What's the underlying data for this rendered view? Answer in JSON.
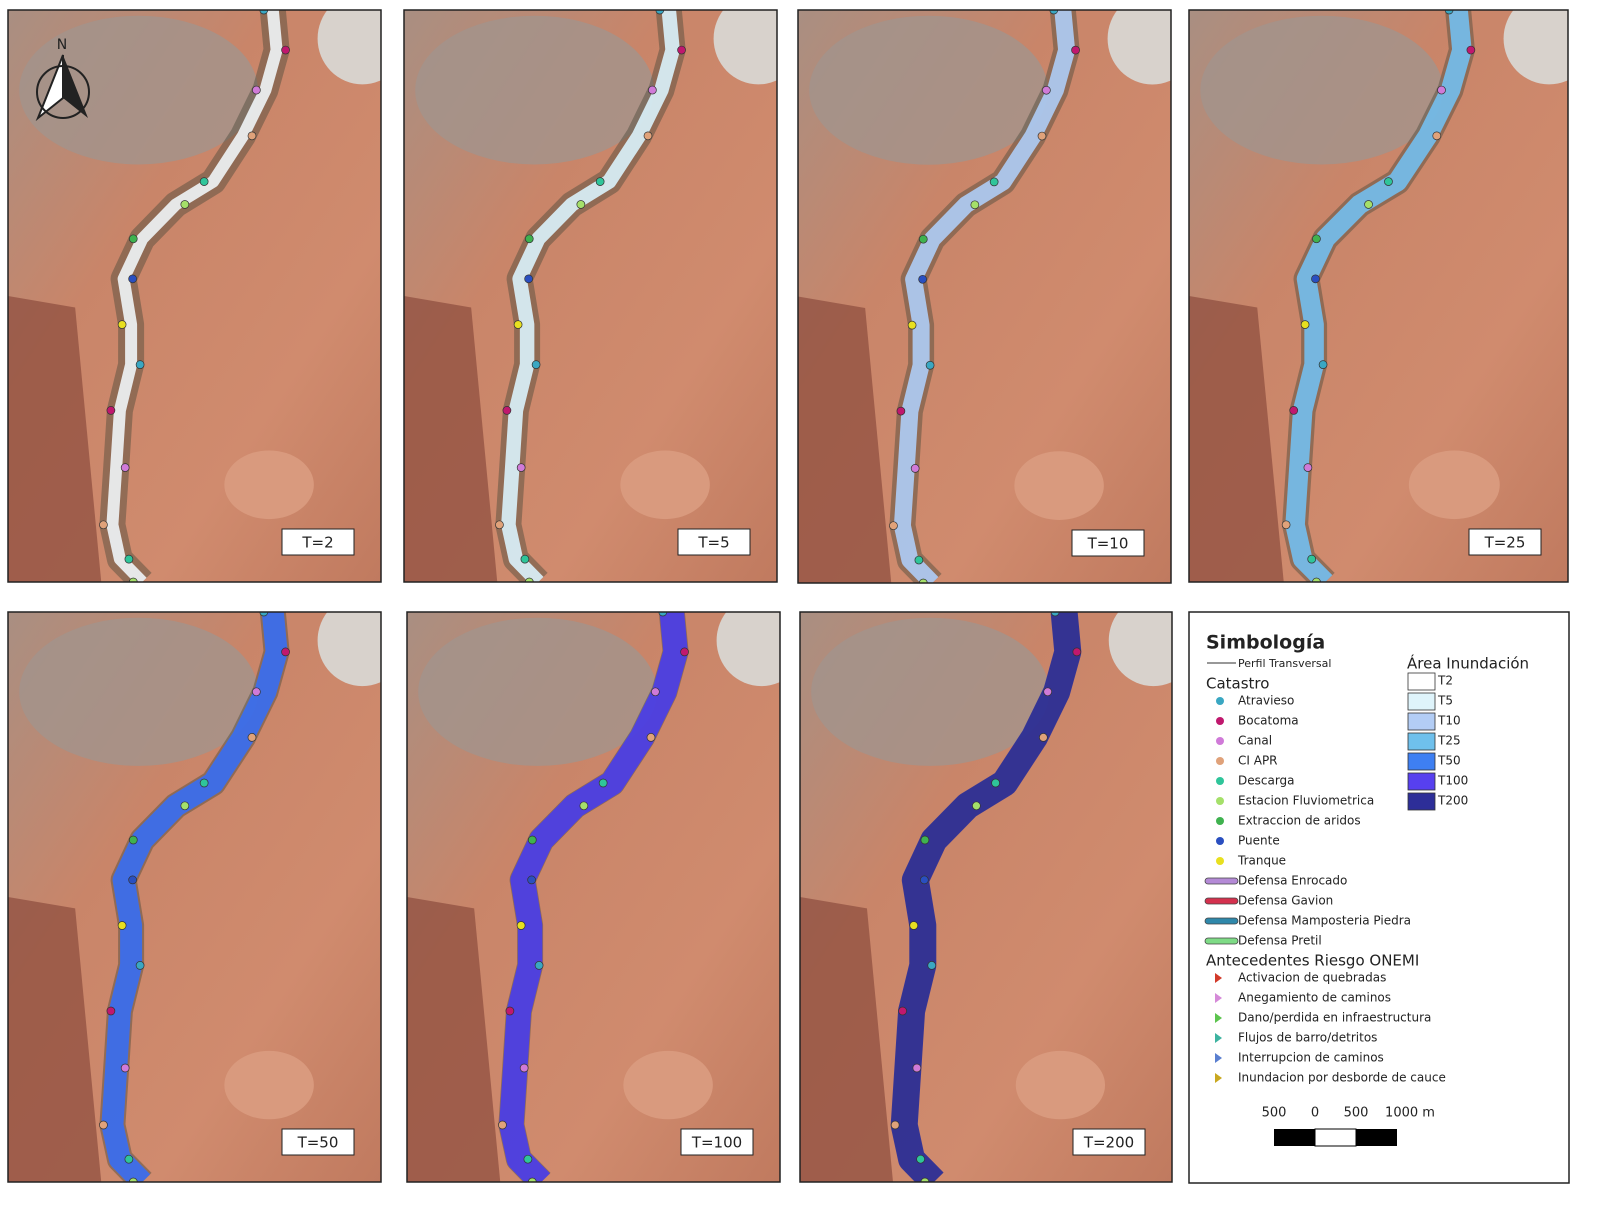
{
  "north_label": "N",
  "panels": [
    {
      "label": "T=2",
      "color": "#eef2f4"
    },
    {
      "label": "T=5",
      "color": "#d9f0f8"
    },
    {
      "label": "T=10",
      "color": "#aecbf3"
    },
    {
      "label": "T=25",
      "color": "#74bdec"
    },
    {
      "label": "T=50",
      "color": "#3a6ef0"
    },
    {
      "label": "T=100",
      "color": "#4b3ee8"
    },
    {
      "label": "T=200",
      "color": "#2c2f98"
    }
  ],
  "legend": {
    "title": "Simbología",
    "perfil": "Perfil Transversal",
    "catastro": {
      "title": "Catastro",
      "items": [
        {
          "label": "Atravieso",
          "color": "#3aa7c2"
        },
        {
          "label": "Bocatoma",
          "color": "#c0186e"
        },
        {
          "label": "Canal",
          "color": "#d07ad8"
        },
        {
          "label": "CI APR",
          "color": "#e0a27a"
        },
        {
          "label": "Descarga",
          "color": "#2fc59a"
        },
        {
          "label": "Estacion Fluviometrica",
          "color": "#a5e06a"
        },
        {
          "label": "Extraccion de aridos",
          "color": "#3fb24f"
        },
        {
          "label": "Puente",
          "color": "#2a4fc0"
        },
        {
          "label": "Tranque",
          "color": "#e8e020"
        }
      ]
    },
    "defensas": [
      {
        "label": "Defensa Enrocado",
        "color": "#b48ad6"
      },
      {
        "label": "Defensa Gavion",
        "color": "#d4314e"
      },
      {
        "label": "Defensa Mamposteria Piedra",
        "color": "#2f88aa"
      },
      {
        "label": "Defensa Pretil",
        "color": "#7edb86"
      }
    ],
    "onemi": {
      "title": "Antecedentes Riesgo ONEMI",
      "items": [
        {
          "label": "Activacion de quebradas",
          "color": "#d23a2a"
        },
        {
          "label": "Anegamiento de caminos",
          "color": "#d58ad8"
        },
        {
          "label": "Dano/perdida en infraestructura",
          "color": "#5cc44e"
        },
        {
          "label": "Flujos de barro/detritos",
          "color": "#3db3a0"
        },
        {
          "label": "Interrupcion de caminos",
          "color": "#5a7fd0"
        },
        {
          "label": "Inundacion por desborde de cauce",
          "color": "#c9a820"
        }
      ]
    },
    "inundacion": {
      "title": "Área Inundación",
      "items": [
        {
          "label": "T2",
          "color": "#ffffff"
        },
        {
          "label": "T5",
          "color": "#dff4fb"
        },
        {
          "label": "T10",
          "color": "#b3cdf5"
        },
        {
          "label": "T25",
          "color": "#6fc0ec"
        },
        {
          "label": "T50",
          "color": "#3e7ff2"
        },
        {
          "label": "T100",
          "color": "#5740ef"
        },
        {
          "label": "T200",
          "color": "#2d2e98"
        }
      ]
    },
    "scale": [
      "500",
      "0",
      "500",
      "1000 m"
    ]
  }
}
